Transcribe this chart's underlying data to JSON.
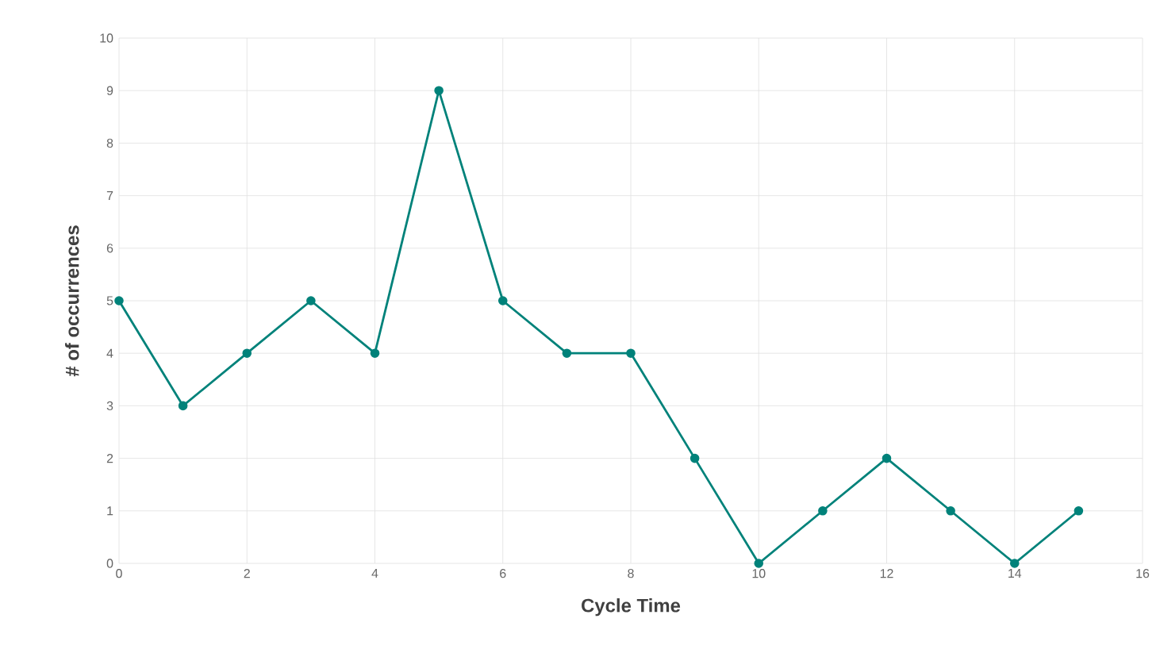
{
  "chart_data": {
    "type": "line",
    "xlabel": "Cycle Time",
    "ylabel": "# of occurrences",
    "x": [
      0,
      1,
      2,
      3,
      4,
      5,
      6,
      7,
      8,
      9,
      10,
      11,
      12,
      13,
      14,
      15
    ],
    "values": [
      5,
      3,
      4,
      5,
      4,
      9,
      5,
      4,
      4,
      2,
      0,
      1,
      2,
      1,
      0,
      1
    ],
    "color": "#00827a",
    "marker": "circle",
    "line_style": "solid",
    "xlim": [
      0,
      16
    ],
    "xticks": [
      0,
      2,
      4,
      6,
      8,
      10,
      12,
      14,
      16
    ],
    "ylim": [
      0,
      10
    ],
    "yticks": [
      0,
      1,
      2,
      3,
      4,
      5,
      6,
      7,
      8,
      9,
      10
    ],
    "grid": true
  }
}
